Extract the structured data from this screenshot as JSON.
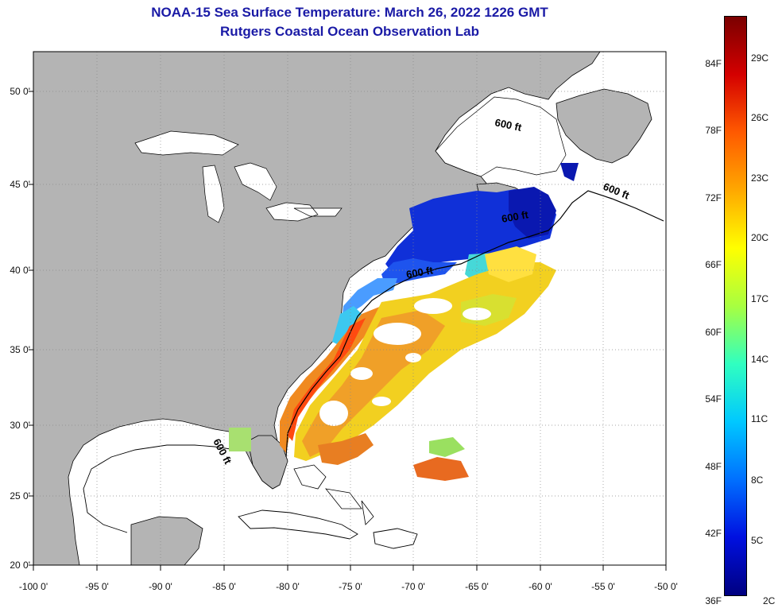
{
  "header": {
    "title": "NOAA-15 Sea Surface Temperature:  March 26, 2022 1226 GMT",
    "subtitle": "Rutgers Coastal Ocean Observation Lab"
  },
  "map": {
    "lon_labels": [
      "-100 0'",
      "-95 0'",
      "-90 0'",
      "-85 0'",
      "-80 0'",
      "-75 0'",
      "-70 0'",
      "-65 0'",
      "-60 0'",
      "-55 0'",
      "-50 0'"
    ],
    "lat_labels": [
      "50 0'",
      "45 0'",
      "40 0'",
      "35 0'",
      "30 0'",
      "25 0'",
      "20 0'"
    ],
    "contour_labels": [
      "600 ft",
      "600 ft",
      "600 ft",
      "600 ft",
      "600 ft"
    ],
    "land_color": "#b4b4b4",
    "ocean_color": "#ffffff"
  },
  "colorbar": {
    "f_labels": [
      "84F",
      "78F",
      "72F",
      "66F",
      "60F",
      "54F",
      "48F",
      "42F",
      "36F"
    ],
    "c_labels": [
      "29C",
      "26C",
      "23C",
      "20C",
      "17C",
      "14C",
      "11C",
      "8C",
      "5C",
      "2C"
    ],
    "gradient": [
      "#7a0000",
      "#d40000",
      "#ff5a00",
      "#ffa800",
      "#ffff00",
      "#a8ff40",
      "#30ffc0",
      "#00c8ff",
      "#0070ff",
      "#0010e0",
      "#000080"
    ]
  }
}
